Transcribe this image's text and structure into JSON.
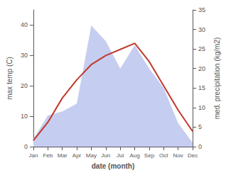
{
  "chart_data": {
    "type": "line",
    "categories": [
      "Jan",
      "Feb",
      "Mar",
      "Apr",
      "May",
      "Jun",
      "Jul",
      "Aug",
      "Sep",
      "Oct",
      "Nov",
      "Dec"
    ],
    "xlabel": "date (month)",
    "ylabel": "max temp (C)",
    "y2label": "med. precipitation (kg/m2)",
    "series": [
      {
        "type": "area",
        "axis": "y2",
        "color": "#c5cef0",
        "values": [
          2,
          8,
          9,
          11,
          31,
          27,
          20,
          26,
          20,
          15,
          6,
          1
        ]
      },
      {
        "type": "line",
        "color": "#c0392b",
        "values": [
          2,
          8,
          16,
          22,
          27,
          30,
          32,
          34,
          28,
          20,
          12,
          5
        ]
      }
    ],
    "ylim": [
      0,
      45
    ],
    "yticks": [
      0,
      10,
      20,
      30,
      40
    ],
    "y2lim": [
      0,
      35
    ],
    "y2ticks": [
      0,
      5,
      10,
      15,
      20,
      25,
      30,
      35
    ],
    "grid": false
  }
}
